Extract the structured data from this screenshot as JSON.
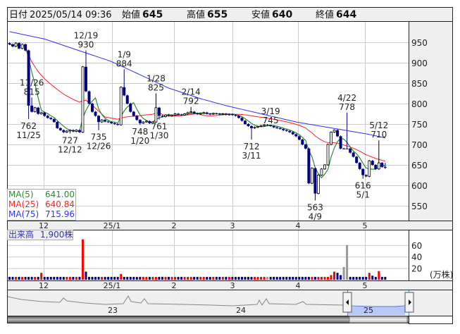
{
  "header": {
    "date_label": "日付",
    "datetime": "2025/05/14 09:36",
    "open_label": "始値",
    "open": "645",
    "high_label": "高値",
    "high": "655",
    "low_label": "安値",
    "low": "640",
    "close_label": "終値",
    "close": "644"
  },
  "legend": {
    "ma5_label": "MA(5)",
    "ma5_value": "641.00",
    "ma25_label": "MA(25)",
    "ma25_value": "640.84",
    "ma75_label": "MA(75)",
    "ma75_value": "715.96"
  },
  "volume_legend": {
    "label": "出来高",
    "value": "1,900株"
  },
  "volume_unit": "(万株)",
  "navigator": {
    "year_labels": [
      "23",
      "24",
      "25"
    ]
  },
  "colors": {
    "up": "#ff0000",
    "down": "#000080",
    "flat": "#999999",
    "ma5": "#2e8b2e",
    "ma25": "#ff2020",
    "ma75": "#3030ff",
    "high_value": "#ff0000",
    "low_value": "#007000"
  },
  "chart_data": [
    {
      "type": "candlestick",
      "title": "",
      "ylim": [
        520,
        1000
      ],
      "y_ticks": [
        "950",
        "900",
        "850",
        "800",
        "750",
        "700",
        "650",
        "600",
        "550"
      ],
      "x_tick_labels": [
        "12",
        "25/1",
        "2",
        "3",
        "4",
        "5"
      ],
      "grid": true,
      "close": [
        945,
        940,
        948,
        935,
        945,
        930,
        795,
        780,
        790,
        775,
        778,
        770,
        765,
        762,
        755,
        740,
        735,
        730,
        733,
        735,
        732,
        735,
        730,
        890,
        830,
        800,
        780,
        770,
        755,
        760,
        756,
        755,
        752,
        750,
        748,
        840,
        820,
        800,
        780,
        770,
        760,
        752,
        755,
        757,
        752,
        755,
        790,
        770,
        768,
        772,
        770,
        772,
        775,
        773,
        772,
        775,
        778,
        780,
        776,
        774,
        776,
        778,
        775,
        774,
        776,
        775,
        774,
        775,
        773,
        774,
        772,
        770,
        765,
        758,
        750,
        745,
        740,
        742,
        744,
        746,
        748,
        748,
        745,
        742,
        740,
        738,
        735,
        733,
        730,
        725,
        720,
        712,
        700,
        690,
        605,
        642,
        580,
        625,
        640,
        650,
        700,
        730,
        735,
        720,
        690,
        690,
        690,
        680,
        670,
        655,
        640,
        625,
        622,
        660,
        650,
        640,
        655,
        645,
        644
      ],
      "last_bar": {
        "open": 645,
        "high": 655,
        "low": 640,
        "close": 644
      },
      "annotations": [
        {
          "bar": 6,
          "date": "11/25",
          "value": 762,
          "kind": "low"
        },
        {
          "bar": 7,
          "date": "11/26",
          "value": 815,
          "kind": "high"
        },
        {
          "bar": 19,
          "date": "12/12",
          "value": 727,
          "kind": "low"
        },
        {
          "bar": 24,
          "date": "12/19",
          "value": 930,
          "kind": "high"
        },
        {
          "bar": 28,
          "date": "12/26",
          "value": 735,
          "kind": "low"
        },
        {
          "bar": 36,
          "date": "1/9",
          "value": 884,
          "kind": "high"
        },
        {
          "bar": 41,
          "date": "1/20",
          "value": 748,
          "kind": "low"
        },
        {
          "bar": 46,
          "date": "1/28",
          "value": 825,
          "kind": "high"
        },
        {
          "bar": 47,
          "date": "1/30",
          "value": 761,
          "kind": "low"
        },
        {
          "bar": 57,
          "date": "2/14",
          "value": 792,
          "kind": "high"
        },
        {
          "bar": 76,
          "date": "3/11",
          "value": 712,
          "kind": "low"
        },
        {
          "bar": 82,
          "date": "3/19",
          "value": 745,
          "kind": "high"
        },
        {
          "bar": 96,
          "date": "4/9",
          "value": 563,
          "kind": "low"
        },
        {
          "bar": 106,
          "date": "4/22",
          "value": 778,
          "kind": "high"
        },
        {
          "bar": 111,
          "date": "5/1",
          "value": 616,
          "kind": "low"
        },
        {
          "bar": 116,
          "date": "5/12",
          "value": 710,
          "kind": "high"
        }
      ],
      "ma75_points": [
        [
          0,
          976
        ],
        [
          11,
          958
        ],
        [
          32,
          903
        ],
        [
          50,
          838
        ],
        [
          60,
          812
        ],
        [
          68,
          795
        ],
        [
          90,
          755
        ],
        [
          112,
          726
        ],
        [
          118,
          716
        ]
      ]
    },
    {
      "type": "bar",
      "title": "出来高",
      "ylabel": "(万株)",
      "ylim": [
        0,
        60
      ],
      "y_ticks": [
        "60",
        "40",
        "20"
      ],
      "x_tick_labels": [
        "12",
        "25/1",
        "2",
        "3",
        "4",
        "5"
      ],
      "default_value": 5,
      "spikes": {
        "10": 12,
        "23": 70,
        "24": 14,
        "35": 10,
        "101": 8,
        "102": 14,
        "103": 12,
        "104": 8,
        "105": 22,
        "106": 60,
        "113": 12,
        "114": 7,
        "115": 5,
        "116": 15
      }
    }
  ]
}
